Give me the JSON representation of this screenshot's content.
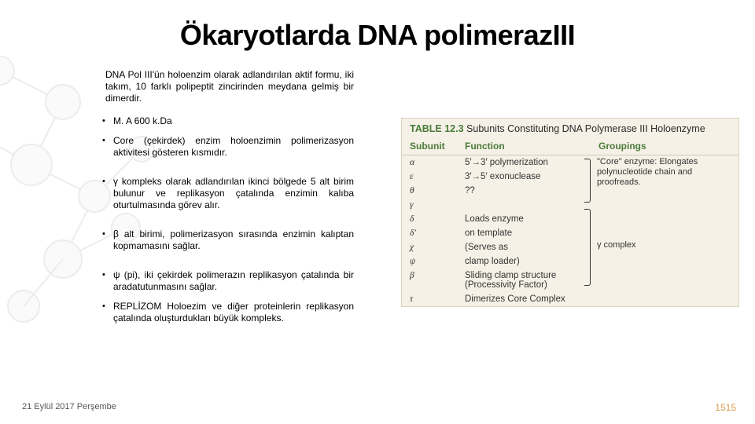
{
  "title": "Ökaryotlarda DNA polimerazIII",
  "intro": "DNA Pol III'ün holoenzim olarak adlandırılan aktif formu, iki takım, 10 farklı polipeptit zincirinden meydana gelmiş bir dimerdir.",
  "bullets": [
    {
      "text": "M. A 600 k.Da",
      "spaced": false
    },
    {
      "text": "Core (çekirdek) enzim holoenzimin polimerizasyon aktivitesi gösteren kısmıdır.",
      "spaced": false
    },
    {
      "text": "γ kompleks olarak adlandırılan ikinci bölgede 5 alt birim bulunur ve replikasyon çatalında enzimin kalıba oturtulmasında görev alır.",
      "spaced": true
    },
    {
      "text": "β alt birimi, polimerizasyon sırasında enzimin kalıptan kopmamasını sağlar.",
      "spaced": true
    },
    {
      "text": "ψ (pi), iki çekirdek polimerazın replikasyon çatalında bir aradatutunmasını sağlar.",
      "spaced": true
    },
    {
      "text": "REPLİZOM Holoezim ve diğer proteinlerin replikasyon çatalında oluşturdukları büyük kompleks.",
      "spaced": false
    }
  ],
  "table": {
    "label_num": "TABLE 12.3",
    "label_text": "Subunits Constituting DNA Polymerase III Holoenzyme",
    "headers": {
      "sub": "Subunit",
      "fun": "Function",
      "grp": "Groupings"
    },
    "rows": [
      {
        "sub": "α",
        "fun": "5′→3′ polymerization"
      },
      {
        "sub": "ε",
        "fun": "3′→5′ exonuclease"
      },
      {
        "sub": "θ",
        "fun": "??"
      },
      {
        "sub": "γ",
        "fun": ""
      },
      {
        "sub": "δ",
        "fun": "Loads enzyme"
      },
      {
        "sub": "δ′",
        "fun": "on template"
      },
      {
        "sub": "χ",
        "fun": "(Serves as"
      },
      {
        "sub": "ψ",
        "fun": "clamp loader)"
      },
      {
        "sub": "β",
        "fun": "Sliding clamp structure (Processivity Factor)"
      },
      {
        "sub": "τ",
        "fun": "Dimerizes Core Complex"
      }
    ],
    "group1": "\"Core\" enzyme: Elongates polynucleotide chain and proofreads.",
    "group2": "γ complex"
  },
  "footer_date": "21 Eylül 2017 Perşembe",
  "footer_page": "1515",
  "colors": {
    "tbl_bg": "#f5f1e6",
    "tbl_accent": "#4a7a3a"
  }
}
